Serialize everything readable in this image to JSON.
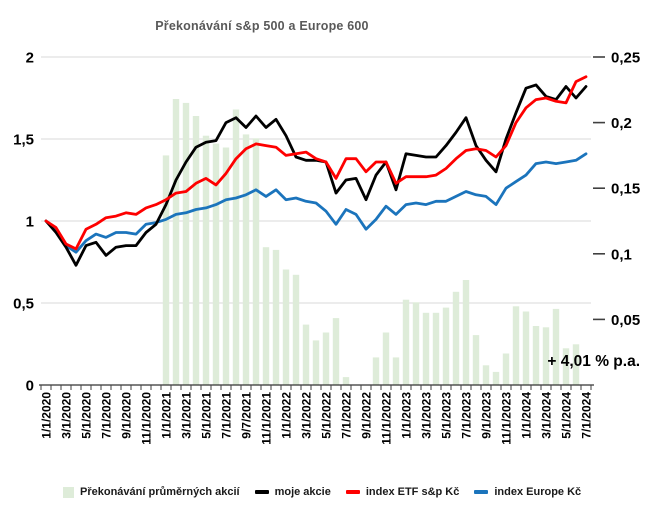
{
  "chart": {
    "title": "Překonávání s&p 500 a Europe 600",
    "annotation": "+ 4,01 % p.a."
  },
  "legend": {
    "items": [
      {
        "label": "Překonávání průměrných akcií",
        "marker": "square"
      },
      {
        "label": "moje akcie",
        "marker": "dash"
      },
      {
        "label": "index ETF s&p Kč",
        "marker": "dash"
      },
      {
        "label": "index Europe Kč",
        "marker": "dash"
      }
    ]
  },
  "chart_data": {
    "type": "combo-bar-line",
    "title": "Překonávání s&p 500 a Europe 600",
    "annotation": "+ 4,01 % p.a.",
    "legend_position": "bottom",
    "grid": "horizontal",
    "colors": {
      "grid": "#d9d9d9",
      "axis": "#333333",
      "tick": "#404040",
      "text": "#000000",
      "title": "#595959"
    },
    "x": {
      "n_points": 55,
      "label_every": 2,
      "tick_labels": [
        "1/1/2020",
        "3/1/2020",
        "5/1/2020",
        "7/1/2020",
        "9/1/2020",
        "11/1/2020",
        "1/1/2021",
        "3/1/2021",
        "5/1/2021",
        "7/1/2021",
        "9/7/2021",
        "11/1/2021",
        "1/1/2022",
        "3/1/2022",
        "5/1/2022",
        "7/1/2022",
        "9/1/2022",
        "11/1/2022",
        "1/1/2023",
        "3/1/2023",
        "5/1/2023",
        "7/1/2023",
        "9/1/2023",
        "11/1/2023",
        "1/1/2024",
        "3/1/2024",
        "5/1/2024",
        "7/1/2024"
      ]
    },
    "y_left": {
      "labels": [
        "0",
        "0,5",
        "1",
        "1,5",
        "2"
      ],
      "values": [
        0,
        0.5,
        1,
        1.5,
        2
      ],
      "min": 0,
      "max": 2
    },
    "y_right": {
      "labels": [
        "0,05",
        "0,1",
        "0,15",
        "0,2",
        "0,25"
      ],
      "values": [
        0.05,
        0.1,
        0.15,
        0.2,
        0.25
      ],
      "min": 0,
      "max": 0.25
    },
    "bars": {
      "name": "Překonávání průměrných akcií",
      "axis": "right",
      "color": "#deecd9",
      "values": [
        0,
        0,
        0,
        0,
        0,
        0,
        0,
        0,
        0,
        0,
        0,
        0,
        0.175,
        0.218,
        0.215,
        0.205,
        0.19,
        0.184,
        0.181,
        0.21,
        0.191,
        0.188,
        0.105,
        0.103,
        0.088,
        0.084,
        0.046,
        0.034,
        0.04,
        0.051,
        0.006,
        0,
        0,
        0.021,
        0.04,
        0.021,
        0.065,
        0.063,
        0.055,
        0.055,
        0.059,
        0.071,
        0.08,
        0.038,
        0.015,
        0.01,
        0.024,
        0.06,
        0.056,
        0.045,
        0.044,
        0.058,
        0.028,
        0.031,
        0
      ]
    },
    "series": [
      {
        "name": "moje akcie",
        "axis": "left",
        "color": "#000000",
        "values": [
          1.0,
          0.93,
          0.84,
          0.73,
          0.85,
          0.87,
          0.79,
          0.84,
          0.85,
          0.85,
          0.93,
          0.98,
          1.1,
          1.25,
          1.36,
          1.45,
          1.48,
          1.49,
          1.6,
          1.63,
          1.57,
          1.64,
          1.57,
          1.62,
          1.52,
          1.39,
          1.37,
          1.37,
          1.36,
          1.17,
          1.25,
          1.26,
          1.13,
          1.28,
          1.36,
          1.19,
          1.41,
          1.4,
          1.39,
          1.39,
          1.46,
          1.54,
          1.63,
          1.46,
          1.37,
          1.3,
          1.5,
          1.66,
          1.81,
          1.83,
          1.76,
          1.74,
          1.82,
          1.75,
          1.82
        ]
      },
      {
        "name": "index ETF s&p Kč",
        "axis": "left",
        "color": "#fe0000",
        "values": [
          1.0,
          0.96,
          0.86,
          0.83,
          0.95,
          0.98,
          1.02,
          1.03,
          1.05,
          1.04,
          1.08,
          1.1,
          1.13,
          1.17,
          1.18,
          1.23,
          1.26,
          1.22,
          1.29,
          1.38,
          1.44,
          1.47,
          1.46,
          1.45,
          1.4,
          1.41,
          1.42,
          1.38,
          1.36,
          1.26,
          1.38,
          1.38,
          1.3,
          1.36,
          1.36,
          1.23,
          1.27,
          1.27,
          1.27,
          1.28,
          1.32,
          1.38,
          1.43,
          1.44,
          1.43,
          1.39,
          1.46,
          1.6,
          1.69,
          1.74,
          1.75,
          1.73,
          1.72,
          1.85,
          1.88
        ]
      },
      {
        "name": "index Europe Kč",
        "axis": "left",
        "color": "#1b74bc",
        "values": [
          1.0,
          0.95,
          0.85,
          0.81,
          0.88,
          0.92,
          0.9,
          0.93,
          0.93,
          0.92,
          0.98,
          0.99,
          1.01,
          1.04,
          1.05,
          1.07,
          1.08,
          1.1,
          1.13,
          1.14,
          1.16,
          1.19,
          1.15,
          1.19,
          1.13,
          1.14,
          1.12,
          1.11,
          1.06,
          0.98,
          1.07,
          1.04,
          0.95,
          1.01,
          1.09,
          1.04,
          1.1,
          1.11,
          1.1,
          1.12,
          1.12,
          1.15,
          1.18,
          1.16,
          1.15,
          1.1,
          1.2,
          1.24,
          1.28,
          1.35,
          1.36,
          1.35,
          1.36,
          1.37,
          1.41
        ]
      }
    ]
  }
}
